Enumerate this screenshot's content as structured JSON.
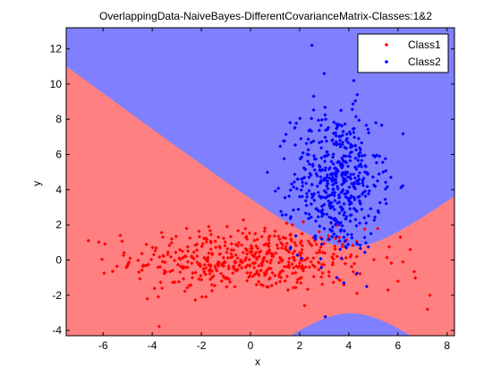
{
  "chart_data": {
    "type": "scatter",
    "title": "OverlappingData-NaiveBayes-DifferentCovarianceMatrix-Classes:1&2",
    "xlabel": "x",
    "ylabel": "y",
    "xlim": [
      -7.5,
      8.3
    ],
    "ylim": [
      -4.3,
      13.2
    ],
    "xticks": [
      -6,
      -4,
      -2,
      0,
      2,
      4,
      6,
      8
    ],
    "yticks": [
      -4,
      -2,
      0,
      2,
      4,
      6,
      8,
      10,
      12
    ],
    "grid": false,
    "legend": {
      "position": "top-right"
    },
    "background_regions": [
      {
        "class": "Class1",
        "color": "#ff8080"
      },
      {
        "class": "Class2",
        "color": "#8080ff"
      }
    ],
    "series": [
      {
        "name": "Class1",
        "color": "#ff0000",
        "marker": "diamond",
        "distribution": {
          "mean": [
            0,
            0
          ],
          "std": [
            2.4,
            0.9
          ],
          "n": 500
        },
        "points": [
          [
            -6.6,
            1.1
          ],
          [
            -5.3,
            1.4
          ],
          [
            -4.9,
            0.1
          ],
          [
            -5.0,
            -0.3
          ],
          [
            -4.2,
            -2.2
          ],
          [
            -3.6,
            -1.6
          ],
          [
            -2.6,
            1.8
          ],
          [
            -1.7,
            1.9
          ],
          [
            1.7,
            2.0
          ],
          [
            2.1,
            1.5
          ],
          [
            3.8,
            -1.4
          ],
          [
            5.6,
            -1.7
          ],
          [
            6.2,
            -0.1
          ],
          [
            6.5,
            0.6
          ],
          [
            6.1,
            1.3
          ],
          [
            7.3,
            -2.0
          ],
          [
            7.2,
            -2.8
          ],
          [
            6.0,
            -1.2
          ]
        ]
      },
      {
        "name": "Class2",
        "color": "#0000ff",
        "marker": "diamond",
        "distribution": {
          "mean": [
            3.5,
            4.5
          ],
          "std": [
            0.9,
            2.0
          ],
          "n": 500
        },
        "points": [
          [
            2.5,
            12.2
          ],
          [
            3.0,
            10.6
          ],
          [
            4.2,
            10.2
          ],
          [
            1.8,
            7.5
          ],
          [
            2.9,
            0.9
          ],
          [
            3.9,
            0.7
          ],
          [
            3.8,
            -1.3
          ],
          [
            5.1,
            7.8
          ],
          [
            4.9,
            1.5
          ],
          [
            5.4,
            5.0
          ]
        ]
      }
    ]
  }
}
